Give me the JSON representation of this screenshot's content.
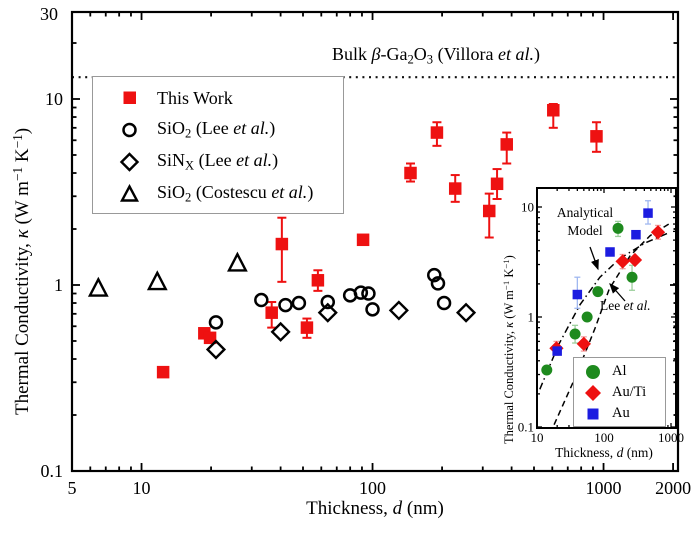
{
  "colors": {
    "red": "#ee1111",
    "green": "#1e8a1e",
    "blue": "#1c1ce0",
    "black": "#000000",
    "err_green": "#9ccf9c",
    "err_red": "#f2a0a0",
    "err_blue": "#a0b8f0",
    "frame": "#000000",
    "legend_border": "#999999"
  },
  "labels": {
    "bulk": "Bulk *β*-Ga_2_O_3_ (Villora *et al.*)",
    "x_axis": "Thickness, *d* (nm)",
    "y_axis": "Thermal Conductivity, *κ* (W m^−1^ K^−1^)",
    "inset_x_axis": "Thickness, *d* (nm)",
    "inset_y_axis": "Thermal Conductivity, *κ* (W m^−1^ K^−1^)",
    "annotation_model": "Analytical Model",
    "annotation_lee": "Lee *et al.*"
  },
  "main_legend": {
    "items": [
      {
        "label": "This Work",
        "marker": "square-filled-red"
      },
      {
        "label": "SiO_2_ (Lee *et al.*)",
        "marker": "circle-open"
      },
      {
        "label": "SiN_X_ (Lee *et al.*)",
        "marker": "diamond-open"
      },
      {
        "label": "SiO_2_ (Costescu *et al.*)",
        "marker": "triangle-open"
      }
    ]
  },
  "inset_legend": {
    "items": [
      {
        "label": "Al",
        "marker": "circle-filled-green"
      },
      {
        "label": "Au/Ti",
        "marker": "diamond-filled-red"
      },
      {
        "label": "Au",
        "marker": "square-filled-blue"
      }
    ]
  },
  "chart_data": [
    {
      "id": "main",
      "type": "scatter",
      "xscale": "log",
      "yscale": "log",
      "xlabel": "Thickness, d (nm)",
      "ylabel": "Thermal Conductivity, κ (W m⁻¹ K⁻¹)",
      "xlim": [
        5,
        2100
      ],
      "ylim": [
        0.105,
        28.5
      ],
      "x_tick_labels": [
        "5",
        "10",
        "100",
        "1000",
        "2000"
      ],
      "y_tick_labels": [
        "0.1",
        "1",
        "10",
        "30"
      ],
      "grid": false,
      "reference_line": {
        "value": 13.1,
        "style": "dotted",
        "label": "Bulk β-Ga₂O₃ (Villora et al.)"
      },
      "series": [
        {
          "name": "This Work",
          "marker": "square",
          "filled": true,
          "color": "#ee1111",
          "points": [
            {
              "d": 12.4,
              "k": 0.34
            },
            {
              "d": 18.7,
              "k": 0.55
            },
            {
              "d": 19.8,
              "k": 0.52
            },
            {
              "d": 36.6,
              "k": 0.71,
              "err": [
                0.59,
                0.81
              ]
            },
            {
              "d": 40.5,
              "k": 1.66,
              "err": [
                1.04,
                2.3
              ]
            },
            {
              "d": 52,
              "k": 0.59,
              "err": [
                0.52,
                0.66
              ]
            },
            {
              "d": 58,
              "k": 1.06,
              "err": [
                0.93,
                1.2
              ]
            },
            {
              "d": 91,
              "k": 1.75
            },
            {
              "d": 146,
              "k": 4.0,
              "err": [
                3.6,
                4.5
              ]
            },
            {
              "d": 190,
              "k": 6.6,
              "err": [
                5.6,
                7.5
              ]
            },
            {
              "d": 228,
              "k": 3.3,
              "err": [
                2.8,
                3.9
              ]
            },
            {
              "d": 320,
              "k": 2.5,
              "err": [
                1.8,
                3.1
              ]
            },
            {
              "d": 346,
              "k": 3.5,
              "err": [
                2.9,
                4.2
              ]
            },
            {
              "d": 381,
              "k": 5.7,
              "err": [
                4.5,
                6.6
              ]
            },
            {
              "d": 606,
              "k": 8.7,
              "err": [
                7.0,
                9.4
              ]
            },
            {
              "d": 932,
              "k": 6.3,
              "err": [
                5.2,
                7.5
              ]
            }
          ]
        },
        {
          "name": "SiO2 (Lee et al.)",
          "marker": "circle",
          "filled": false,
          "color": "#000000",
          "points": [
            {
              "d": 21,
              "k": 0.63
            },
            {
              "d": 33,
              "k": 0.83
            },
            {
              "d": 42,
              "k": 0.78
            },
            {
              "d": 48,
              "k": 0.8
            },
            {
              "d": 64,
              "k": 0.81
            },
            {
              "d": 80,
              "k": 0.88
            },
            {
              "d": 89,
              "k": 0.91
            },
            {
              "d": 96,
              "k": 0.9
            },
            {
              "d": 100,
              "k": 0.74
            },
            {
              "d": 185,
              "k": 1.13
            },
            {
              "d": 192,
              "k": 1.02
            },
            {
              "d": 204,
              "k": 0.8
            }
          ]
        },
        {
          "name": "SiNX (Lee et al.)",
          "marker": "diamond",
          "filled": false,
          "color": "#000000",
          "points": [
            {
              "d": 21,
              "k": 0.45
            },
            {
              "d": 40,
              "k": 0.56
            },
            {
              "d": 64,
              "k": 0.71
            },
            {
              "d": 130,
              "k": 0.73
            },
            {
              "d": 254,
              "k": 0.71
            }
          ]
        },
        {
          "name": "SiO2 (Costescu et al.)",
          "marker": "triangle",
          "filled": false,
          "color": "#000000",
          "points": [
            {
              "d": 6.5,
              "k": 0.96
            },
            {
              "d": 11.7,
              "k": 1.04
            },
            {
              "d": 26,
              "k": 1.31
            }
          ]
        }
      ]
    },
    {
      "id": "inset",
      "type": "scatter",
      "xscale": "log",
      "yscale": "log",
      "xlabel": "Thickness, d (nm)",
      "ylabel": "Thermal Conductivity, κ (W m⁻¹ K⁻¹)",
      "xlim": [
        10,
        1150
      ],
      "ylim": [
        0.09,
        14
      ],
      "x_tick_labels": [
        "10",
        "100",
        "1000"
      ],
      "y_tick_labels": [
        "0.1",
        "1",
        "10"
      ],
      "grid": false,
      "series": [
        {
          "name": "Al",
          "marker": "circle",
          "filled": true,
          "color": "#1e8a1e",
          "err_color": "#9ccf9c",
          "points": [
            {
              "d": 14,
              "k": 0.33
            },
            {
              "d": 37,
              "k": 0.7,
              "err": [
                0.58,
                0.84
              ]
            },
            {
              "d": 56,
              "k": 1.0
            },
            {
              "d": 81,
              "k": 1.7
            },
            {
              "d": 162,
              "k": 6.4,
              "err": [
                5.4,
                7.4
              ]
            },
            {
              "d": 262,
              "k": 2.3,
              "err": [
                1.75,
                2.95
              ]
            }
          ]
        },
        {
          "name": "Au/Ti",
          "marker": "diamond",
          "filled": true,
          "color": "#ee1111",
          "err_color": "#f2a0a0",
          "points": [
            {
              "d": 19.5,
              "k": 0.52,
              "err": [
                0.45,
                0.6
              ]
            },
            {
              "d": 50,
              "k": 0.57,
              "err": [
                0.49,
                0.66
              ]
            },
            {
              "d": 190,
              "k": 3.2,
              "err": [
                2.75,
                3.7
              ]
            },
            {
              "d": 290,
              "k": 3.3
            },
            {
              "d": 640,
              "k": 5.9,
              "err": [
                5.1,
                6.8
              ]
            }
          ]
        },
        {
          "name": "Au",
          "marker": "square",
          "filled": true,
          "color": "#1c1ce0",
          "err_color": "#a0b8f0",
          "points": [
            {
              "d": 20,
              "k": 0.49
            },
            {
              "d": 40,
              "k": 1.6,
              "err": [
                1.2,
                2.3
              ]
            },
            {
              "d": 123,
              "k": 3.9
            },
            {
              "d": 300,
              "k": 5.6
            },
            {
              "d": 454,
              "k": 8.8,
              "err": [
                7.0,
                11.4
              ]
            }
          ]
        }
      ],
      "lines": [
        {
          "name": "Analytical Model",
          "style": "dashdot",
          "points": [
            [
              11,
              0.22
            ],
            [
              21,
              0.56
            ],
            [
              44,
              1.3
            ],
            [
              87,
              2.3
            ],
            [
              173,
              3.4
            ],
            [
              408,
              4.7
            ],
            [
              965,
              5.9
            ]
          ]
        },
        {
          "name": "Lee et al.",
          "style": "dashed",
          "points": [
            [
              18,
              0.105
            ],
            [
              37,
              0.28
            ],
            [
              73,
              0.78
            ],
            [
              120,
              1.8
            ],
            [
              245,
              3.6
            ],
            [
              490,
              5.5
            ],
            [
              1000,
              7.2
            ]
          ]
        }
      ]
    }
  ]
}
